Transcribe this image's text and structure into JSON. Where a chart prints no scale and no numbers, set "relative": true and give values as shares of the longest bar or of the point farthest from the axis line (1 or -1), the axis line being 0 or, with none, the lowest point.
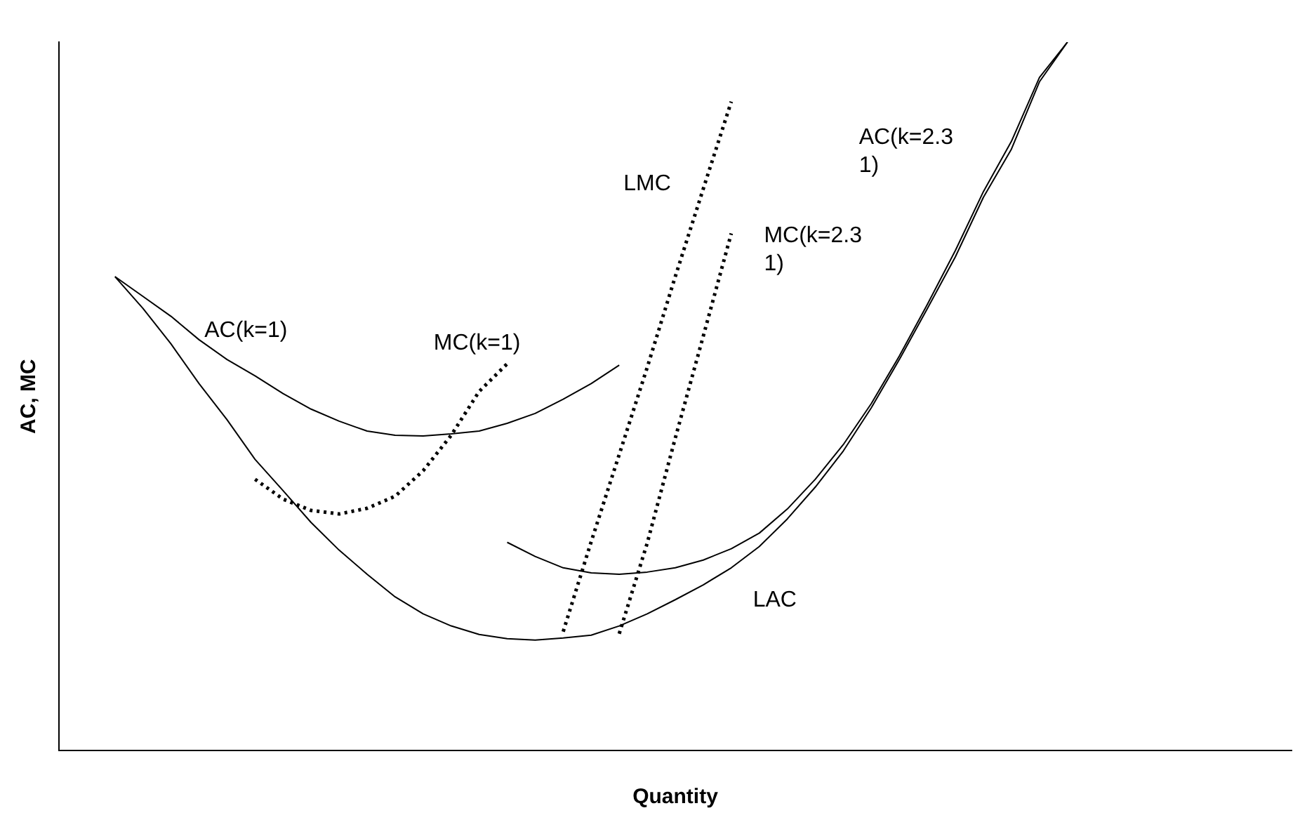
{
  "chart_data": {
    "type": "line",
    "relative": true,
    "xlabel": "Quantity",
    "ylabel": "AC, MC",
    "grid": false,
    "legend": false,
    "marker": "none",
    "categories": [
      null,
      null,
      null,
      null,
      null,
      null,
      null,
      null,
      null,
      null,
      null,
      null,
      null,
      null,
      null,
      null,
      null,
      null,
      null,
      null,
      null,
      null,
      null,
      null,
      null,
      null,
      null,
      null,
      null,
      null,
      null,
      null,
      null,
      null,
      null,
      null,
      null,
      null,
      null,
      null,
      null,
      null,
      null,
      null,
      null
    ],
    "series": [
      {
        "name": "LAC",
        "color": "#000000",
        "line_style": "solid",
        "values": [
          null,
          null,
          0.669,
          0.624,
          0.574,
          0.518,
          0.467,
          0.411,
          0.367,
          0.322,
          0.283,
          0.249,
          0.217,
          0.193,
          0.176,
          0.164,
          0.158,
          0.156,
          0.159,
          0.163,
          0.176,
          0.193,
          0.213,
          0.234,
          0.258,
          0.288,
          0.327,
          0.372,
          0.423,
          0.484,
          0.552,
          0.624,
          0.697,
          0.781,
          0.849,
          0.944,
          1,
          null,
          null,
          null,
          null,
          null,
          null,
          null,
          null
        ]
      },
      {
        "name": "AC(k=1)",
        "color": "#000000",
        "line_style": "solid",
        "values": [
          null,
          null,
          0.669,
          0.641,
          0.613,
          0.58,
          0.552,
          0.529,
          0.504,
          0.482,
          0.465,
          0.451,
          0.445,
          0.444,
          0.447,
          0.451,
          0.462,
          0.476,
          0.496,
          0.518,
          0.544,
          null,
          null,
          null,
          null,
          null,
          null,
          null,
          null,
          null,
          null,
          null,
          null,
          null,
          null,
          null,
          null,
          null,
          null,
          null,
          null,
          null,
          null,
          null,
          null
        ]
      },
      {
        "name": "MC(k=1)",
        "color": "#000000",
        "line_style": "dotted",
        "values": [
          null,
          null,
          null,
          null,
          null,
          null,
          null,
          0.383,
          0.355,
          0.339,
          0.334,
          0.342,
          0.359,
          0.395,
          0.445,
          0.507,
          0.546,
          null,
          null,
          null,
          null,
          null,
          null,
          null,
          null,
          null,
          null,
          null,
          null,
          null,
          null,
          null,
          null,
          null,
          null,
          null,
          null,
          null,
          null,
          null,
          null,
          null,
          null,
          null,
          null
        ]
      },
      {
        "name": "LMC",
        "color": "#000000",
        "line_style": "dotted",
        "values": [
          null,
          null,
          null,
          null,
          null,
          null,
          null,
          null,
          null,
          null,
          null,
          null,
          null,
          null,
          null,
          null,
          null,
          null,
          0.168,
          0.295,
          0.418,
          0.541,
          0.669,
          0.793,
          0.916,
          null,
          null,
          null,
          null,
          null,
          null,
          null,
          null,
          null,
          null,
          null,
          null,
          null,
          null,
          null,
          null,
          null,
          null,
          null,
          null
        ]
      },
      {
        "name": "AC(k=2.31)",
        "color": "#000000",
        "line_style": "solid",
        "values": [
          null,
          null,
          null,
          null,
          null,
          null,
          null,
          null,
          null,
          null,
          null,
          null,
          null,
          null,
          null,
          null,
          0.294,
          0.274,
          0.258,
          0.251,
          0.249,
          0.252,
          0.258,
          0.269,
          0.285,
          0.307,
          0.341,
          0.383,
          0.432,
          0.49,
          0.557,
          0.63,
          0.706,
          0.789,
          0.86,
          0.95,
          1,
          null,
          null,
          null,
          null,
          null,
          null,
          null,
          null
        ]
      },
      {
        "name": "MC(k=2.31)",
        "color": "#000000",
        "line_style": "dotted",
        "values": [
          null,
          null,
          null,
          null,
          null,
          null,
          null,
          null,
          null,
          null,
          null,
          null,
          null,
          null,
          null,
          null,
          null,
          null,
          null,
          null,
          0.165,
          0.293,
          0.441,
          0.585,
          0.73,
          null,
          null,
          null,
          null,
          null,
          null,
          null,
          null,
          null,
          null,
          null,
          null,
          null,
          null,
          null,
          null,
          null,
          null,
          null,
          null
        ]
      }
    ]
  }
}
